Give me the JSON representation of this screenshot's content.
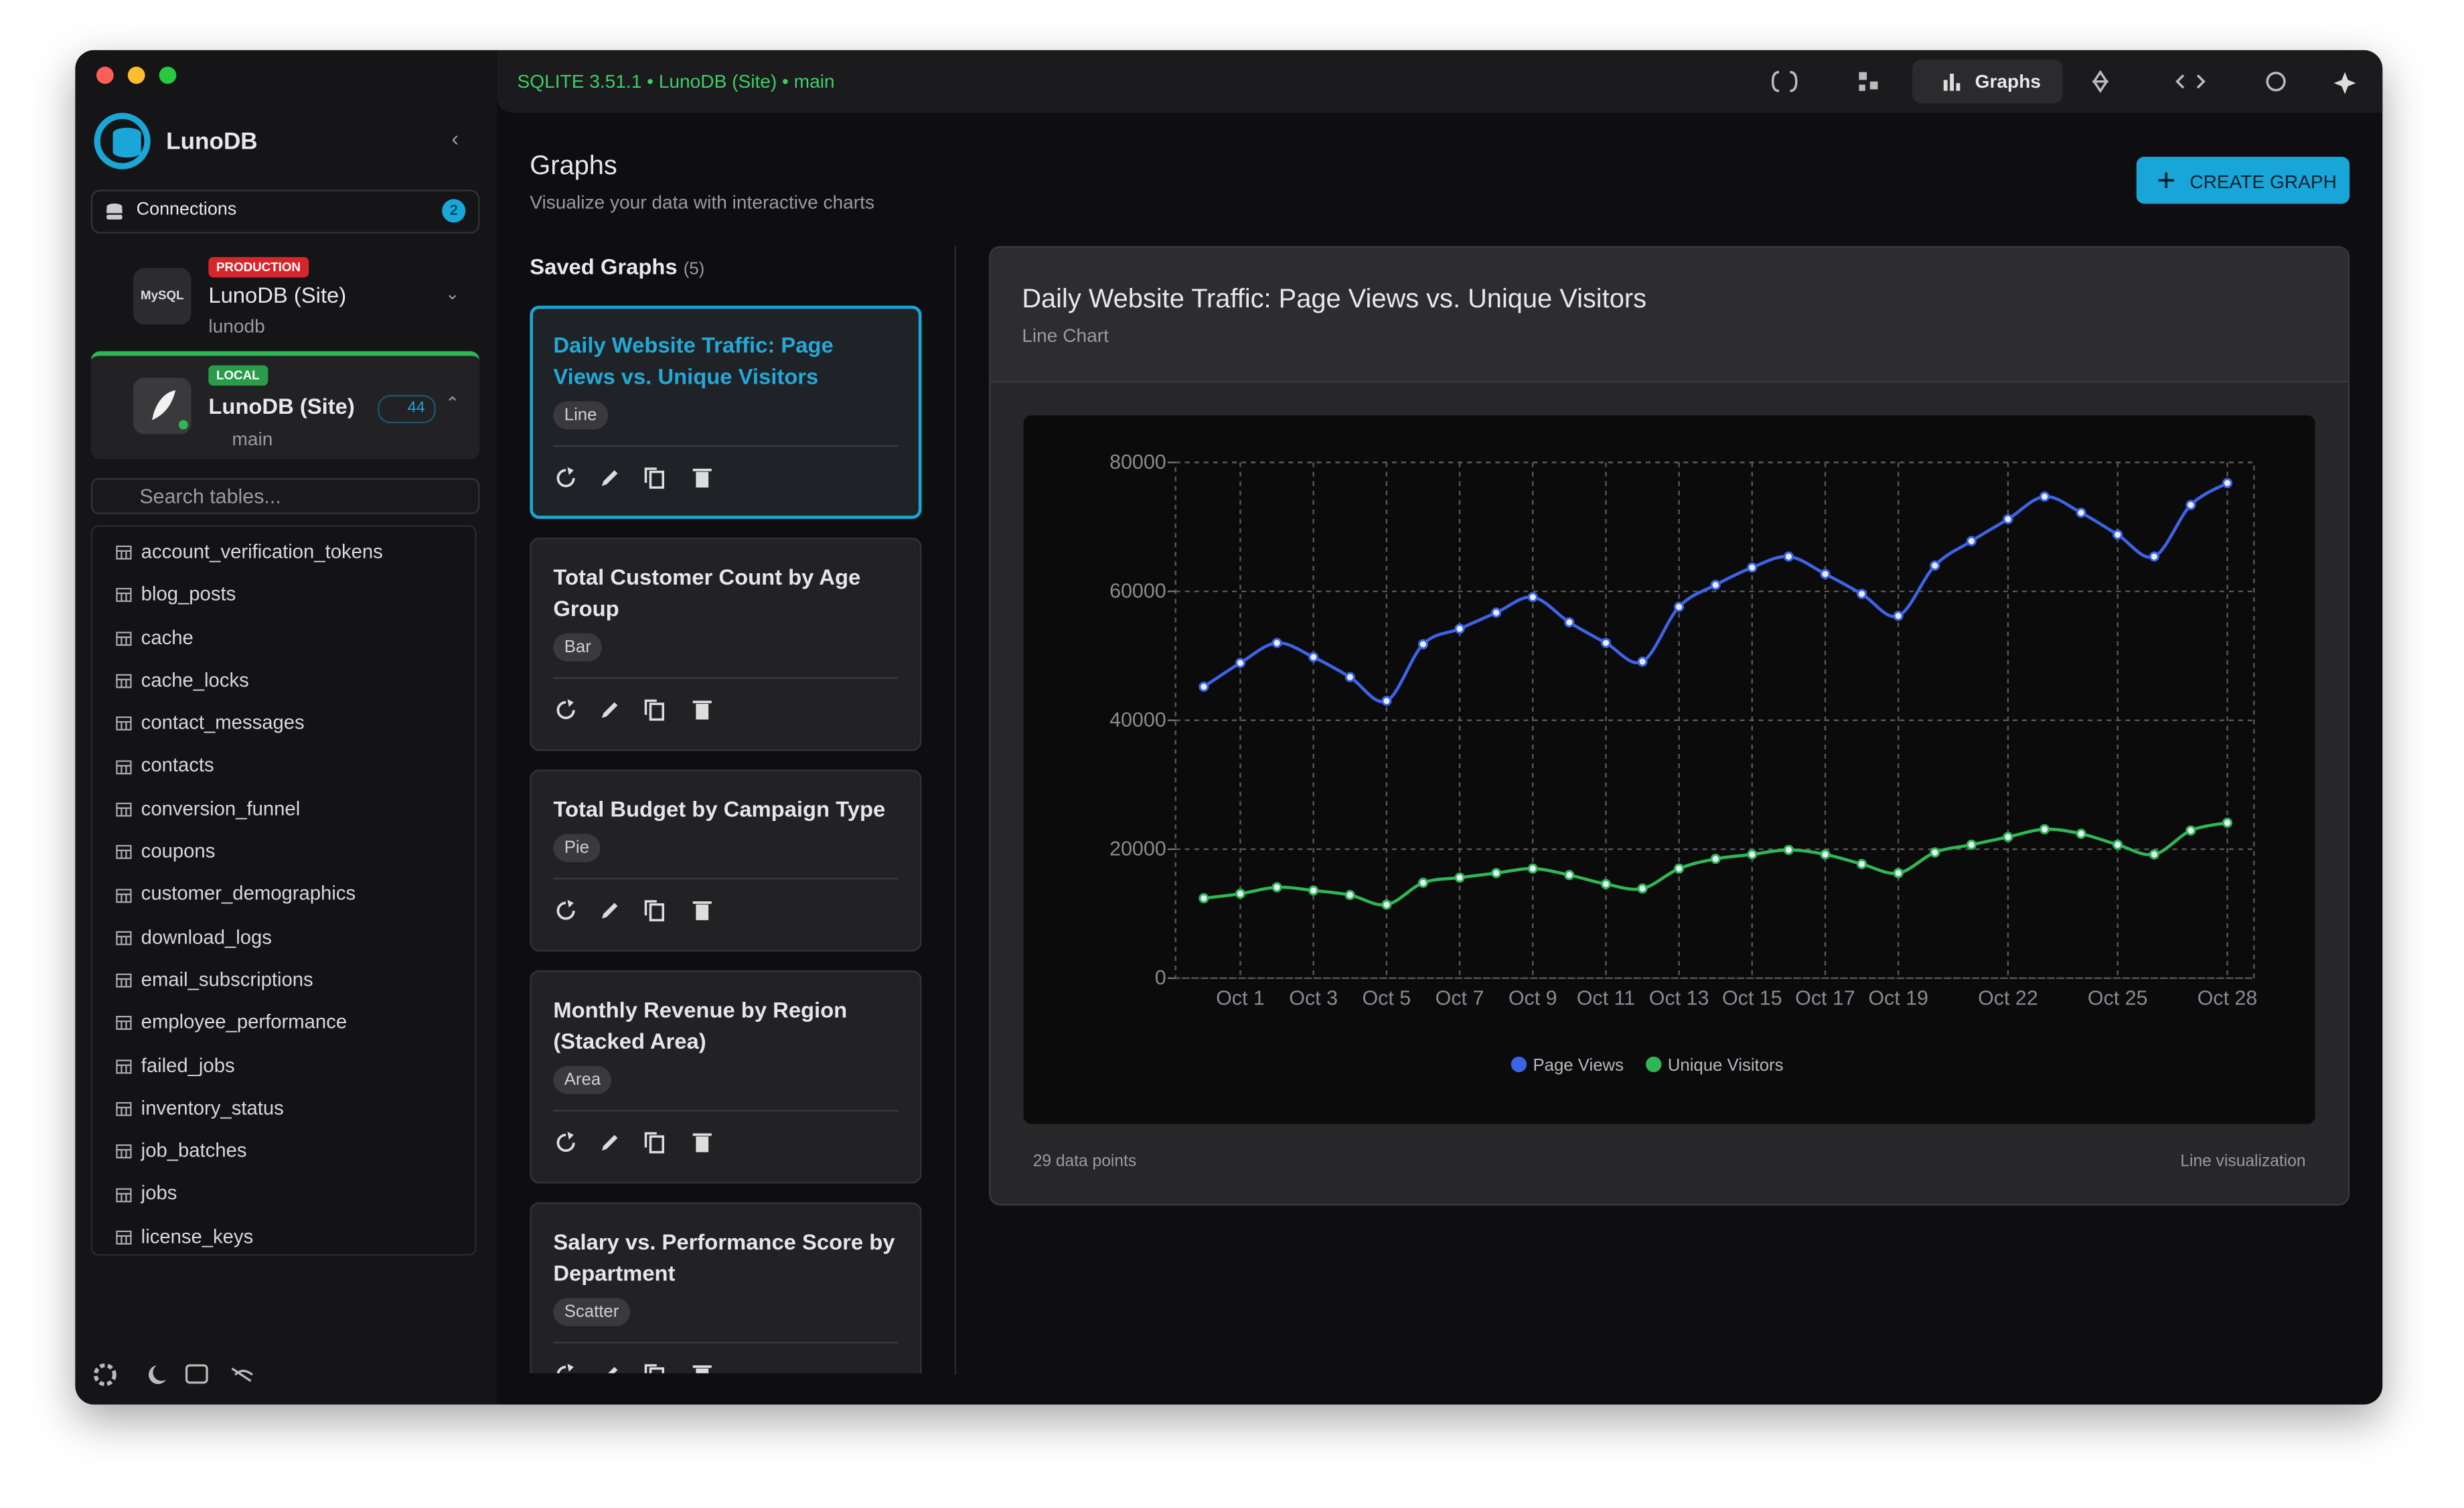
{
  "window": {
    "connection_info": "SQLITE 3.51.1 • LunoDB (Site) • main",
    "active_tab": "Graphs"
  },
  "sidebar": {
    "app_name": "LunoDB",
    "connections_label": "Connections",
    "connections_count": 2,
    "connections": [
      {
        "env": "PRODUCTION",
        "engine": "MySQL",
        "name": "LunoDB (Site)",
        "database": "lunodb"
      },
      {
        "env": "LOCAL",
        "name": "LunoDB (Site)",
        "table_count": 44,
        "database": "main"
      }
    ],
    "search_placeholder": "Search tables...",
    "tables": [
      "account_verification_tokens",
      "blog_posts",
      "cache",
      "cache_locks",
      "contact_messages",
      "contacts",
      "conversion_funnel",
      "coupons",
      "customer_demographics",
      "download_logs",
      "email_subscriptions",
      "employee_performance",
      "failed_jobs",
      "inventory_status",
      "job_batches",
      "jobs",
      "license_keys"
    ]
  },
  "page": {
    "title": "Graphs",
    "subtitle": "Visualize your data with interactive charts",
    "create_button": "CREATE GRAPH",
    "saved_graphs_label": "Saved Graphs",
    "saved_graphs_count": "(5)",
    "saved_graphs": [
      {
        "title": "Daily Website Traffic: Page Views vs. Unique Visitors",
        "type": "Line"
      },
      {
        "title": "Total Customer Count by Age Group",
        "type": "Bar"
      },
      {
        "title": "Total Budget by Campaign Type",
        "type": "Pie"
      },
      {
        "title": "Monthly Revenue by Region (Stacked Area)",
        "type": "Area"
      },
      {
        "title": "Salary vs. Performance Score by Department",
        "type": "Scatter"
      }
    ]
  },
  "chart_panel": {
    "footer_left": "29 data points",
    "footer_right": "Line visualization"
  },
  "chart_data": {
    "type": "line",
    "title": "Daily Website Traffic: Page Views vs. Unique Visitors",
    "subtitle": "Line Chart",
    "categories": [
      null,
      "Oct 1",
      null,
      "Oct 3",
      null,
      "Oct 5",
      null,
      "Oct 7",
      null,
      "Oct 9",
      null,
      "Oct 11",
      null,
      "Oct 13",
      null,
      "Oct 15",
      null,
      "Oct 17",
      null,
      "Oct 19",
      null,
      null,
      "Oct 22",
      null,
      null,
      "Oct 25",
      null,
      null,
      "Oct 28"
    ],
    "series": [
      {
        "name": "Page Views",
        "color": "#3d63e6",
        "values": [
          45200,
          48900,
          52000,
          49800,
          46700,
          43000,
          51800,
          54200,
          56700,
          59100,
          55200,
          52000,
          49100,
          57600,
          61000,
          63700,
          65400,
          62700,
          59600,
          56200,
          64000,
          67800,
          71200,
          74700,
          72200,
          68800,
          65400,
          73400,
          76800
        ]
      },
      {
        "name": "Unique Visitors",
        "color": "#2fb655",
        "values": [
          12400,
          13100,
          14100,
          13600,
          12900,
          11400,
          14800,
          15600,
          16300,
          17000,
          16000,
          14600,
          13900,
          17000,
          18500,
          19200,
          19900,
          19200,
          17700,
          16300,
          19500,
          20700,
          21900,
          23100,
          22400,
          20700,
          19200,
          22900,
          24100
        ]
      }
    ],
    "ylim": [
      0,
      80000
    ],
    "yticks": [
      0,
      20000,
      40000,
      60000,
      80000
    ],
    "grid": true,
    "legend": "bottom"
  }
}
